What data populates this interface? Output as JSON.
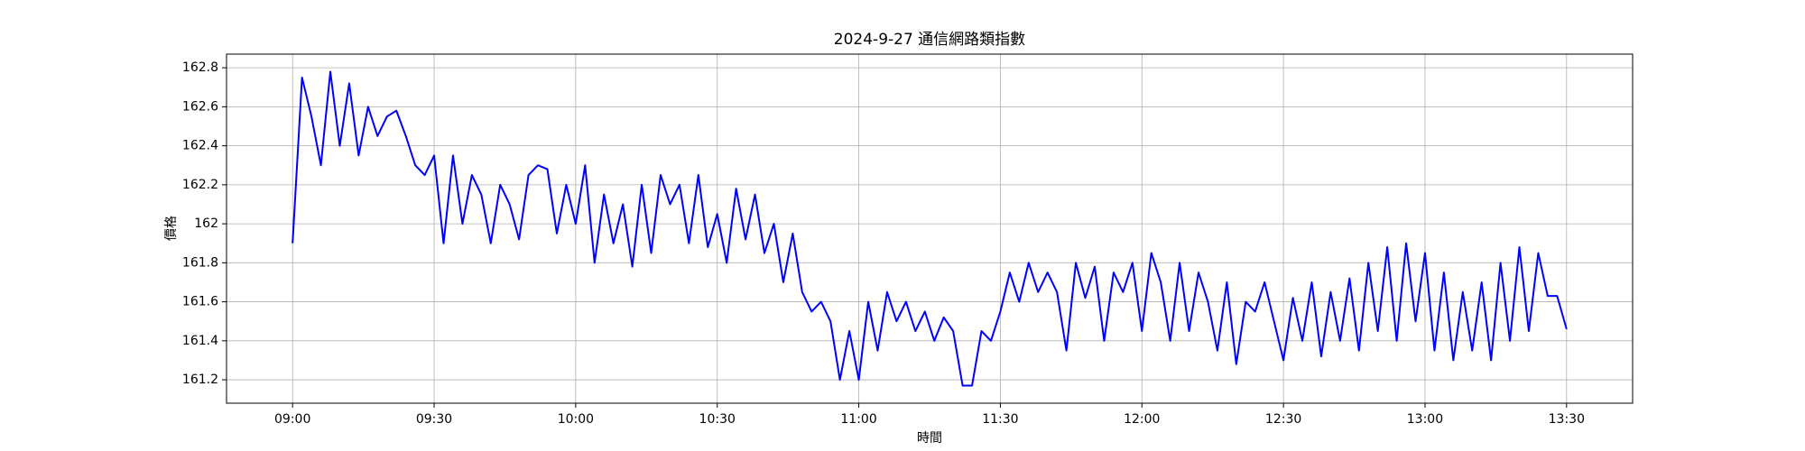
{
  "chart_data": {
    "type": "line",
    "title": "2024-9-27 通信網路類指數",
    "x_label": "時間",
    "y_label": "價格",
    "x": [
      "09:00",
      "09:02",
      "09:04",
      "09:06",
      "09:08",
      "09:10",
      "09:12",
      "09:14",
      "09:16",
      "09:18",
      "09:20",
      "09:22",
      "09:24",
      "09:26",
      "09:28",
      "09:30",
      "09:32",
      "09:34",
      "09:36",
      "09:38",
      "09:40",
      "09:42",
      "09:44",
      "09:46",
      "09:48",
      "09:50",
      "09:52",
      "09:54",
      "09:56",
      "09:58",
      "10:00",
      "10:02",
      "10:04",
      "10:06",
      "10:08",
      "10:10",
      "10:12",
      "10:14",
      "10:16",
      "10:18",
      "10:20",
      "10:22",
      "10:24",
      "10:26",
      "10:28",
      "10:30",
      "10:32",
      "10:34",
      "10:36",
      "10:38",
      "10:40",
      "10:42",
      "10:44",
      "10:46",
      "10:48",
      "10:50",
      "10:52",
      "10:54",
      "10:56",
      "10:58",
      "11:00",
      "11:02",
      "11:04",
      "11:06",
      "11:08",
      "11:10",
      "11:12",
      "11:14",
      "11:16",
      "11:18",
      "11:20",
      "11:22",
      "11:24",
      "11:26",
      "11:28",
      "11:30",
      "11:32",
      "11:34",
      "11:36",
      "11:38",
      "11:40",
      "11:42",
      "11:44",
      "11:46",
      "11:48",
      "11:50",
      "11:52",
      "11:54",
      "11:56",
      "11:58",
      "12:00",
      "12:02",
      "12:04",
      "12:06",
      "12:08",
      "12:10",
      "12:12",
      "12:14",
      "12:16",
      "12:18",
      "12:20",
      "12:22",
      "12:24",
      "12:26",
      "12:28",
      "12:30",
      "12:32",
      "12:34",
      "12:36",
      "12:38",
      "12:40",
      "12:42",
      "12:44",
      "12:46",
      "12:48",
      "12:50",
      "12:52",
      "12:54",
      "12:56",
      "12:58",
      "13:00",
      "13:02",
      "13:04",
      "13:06",
      "13:08",
      "13:10",
      "13:12",
      "13:14",
      "13:16",
      "13:18",
      "13:20",
      "13:22",
      "13:24",
      "13:26",
      "13:28",
      "13:30"
    ],
    "series": [
      {
        "color": "#0000ff",
        "values": [
          161.9,
          162.75,
          162.55,
          162.3,
          162.78,
          162.4,
          162.72,
          162.35,
          162.6,
          162.45,
          162.55,
          162.58,
          162.45,
          162.3,
          162.25,
          162.35,
          161.9,
          162.35,
          162.0,
          162.25,
          162.15,
          161.9,
          162.2,
          162.1,
          161.92,
          162.25,
          162.3,
          162.28,
          161.95,
          162.2,
          162.0,
          162.3,
          161.8,
          162.15,
          161.9,
          162.1,
          161.78,
          162.2,
          161.85,
          162.25,
          162.1,
          162.2,
          161.9,
          162.25,
          161.88,
          162.05,
          161.8,
          162.18,
          161.92,
          162.15,
          161.85,
          162.0,
          161.7,
          161.95,
          161.65,
          161.55,
          161.6,
          161.5,
          161.2,
          161.45,
          161.2,
          161.6,
          161.35,
          161.65,
          161.5,
          161.6,
          161.45,
          161.55,
          161.4,
          161.52,
          161.45,
          161.17,
          161.17,
          161.45,
          161.4,
          161.55,
          161.75,
          161.6,
          161.8,
          161.65,
          161.75,
          161.65,
          161.35,
          161.8,
          161.62,
          161.78,
          161.4,
          161.75,
          161.65,
          161.8,
          161.45,
          161.85,
          161.7,
          161.4,
          161.8,
          161.45,
          161.75,
          161.6,
          161.35,
          161.7,
          161.28,
          161.6,
          161.55,
          161.7,
          161.5,
          161.3,
          161.62,
          161.4,
          161.7,
          161.32,
          161.65,
          161.4,
          161.72,
          161.35,
          161.8,
          161.45,
          161.88,
          161.4,
          161.9,
          161.5,
          161.85,
          161.35,
          161.75,
          161.3,
          161.65,
          161.35,
          161.7,
          161.3,
          161.8,
          161.4,
          161.88,
          161.45,
          161.85,
          161.63,
          161.63,
          161.46
        ]
      }
    ],
    "xlim": [
      "08:46",
      "13:44"
    ],
    "xticks": [
      "09:00",
      "09:30",
      "10:00",
      "10:30",
      "11:00",
      "11:30",
      "12:00",
      "12:30",
      "13:00",
      "13:30"
    ],
    "ylim": [
      161.08,
      162.87
    ],
    "yticks": [
      161.2,
      161.4,
      161.6,
      161.8,
      162.0,
      162.2,
      162.4,
      162.6,
      162.8
    ],
    "grid": true
  }
}
